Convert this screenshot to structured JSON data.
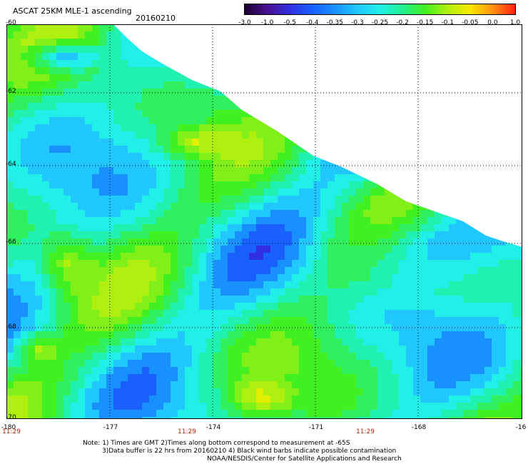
{
  "header": {
    "title": "ASCAT 25KM MLE-1 ascending",
    "date": "20160210"
  },
  "colorbar": {
    "labels": [
      "-3.0",
      "-1.0",
      "-0.5",
      "-0.4",
      "-0.35",
      "-0.3",
      "-0.25",
      "-0.2",
      "-0.15",
      "-0.1",
      "-0.05",
      "0.0",
      "1.0"
    ],
    "colors": [
      "#1a0030",
      "#4a1090",
      "#3030e0",
      "#1a60ff",
      "#1890ff",
      "#20c8ff",
      "#20f0e8",
      "#20f090",
      "#40f020",
      "#b0f010",
      "#f8e800",
      "#ff9010",
      "#ff2010"
    ]
  },
  "map": {
    "lat_labels": [
      "-60",
      "-62",
      "-64",
      "-66",
      "-68",
      "-70"
    ],
    "lon_labels": [
      "-180",
      "-177",
      "-174",
      "-171",
      "-168",
      "-16"
    ],
    "time_labels": [
      "11:29",
      "11:29",
      "11:29"
    ],
    "lat_range": [
      -70,
      -60
    ],
    "lon_range": [
      -180,
      -165
    ]
  },
  "notes": {
    "line1": "Note: 1) Times are GMT 2)Times along bottom correspond to measurement at -65S",
    "line2": "3)Data buffer is 22 hrs from 20160210 4) Black wind barbs indicate possible contamination",
    "line3": "NOAA/NESDIS/Center for Satellite Applications and Research"
  }
}
